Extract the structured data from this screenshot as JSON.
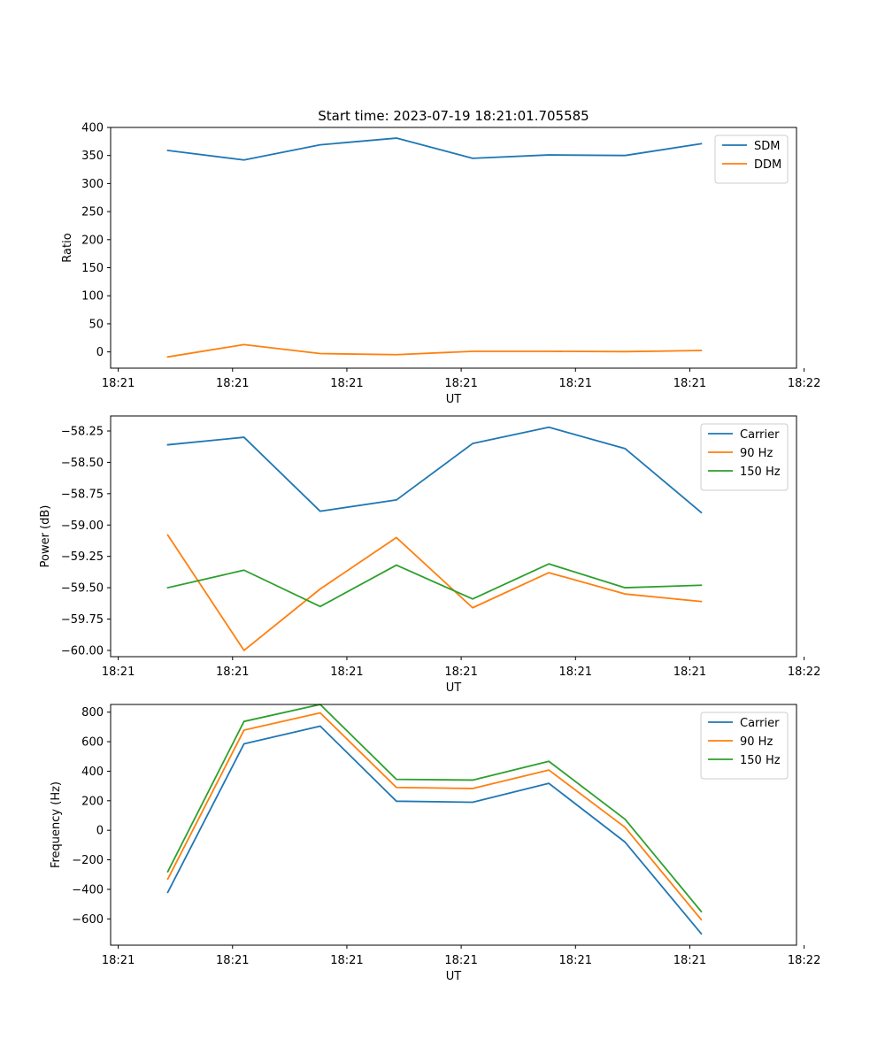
{
  "title": "Start time: 2023-07-19 18:21:01.705585",
  "colors": {
    "blue": "#1f77b4",
    "orange": "#ff7f0e",
    "green": "#2ca02c"
  },
  "chart_data": [
    {
      "type": "line",
      "title": "Start time: 2023-07-19 18:21:01.705585",
      "xlabel": "UT",
      "ylabel": "Ratio",
      "xlim": [
        -0.75,
        8.25
      ],
      "x": [
        0,
        1,
        2,
        3,
        4,
        5,
        6,
        7
      ],
      "xtick_positions": [
        -0.65,
        0.85,
        2.35,
        3.85,
        5.35,
        6.85,
        8.35
      ],
      "xtick_labels": [
        "18:21",
        "18:21",
        "18:21",
        "18:21",
        "18:21",
        "18:21",
        "18:22"
      ],
      "ylim": [
        -29,
        400
      ],
      "yticks": [
        0,
        50,
        100,
        150,
        200,
        250,
        300,
        350,
        400
      ],
      "ytick_labels": [
        "0",
        "50",
        "100",
        "150",
        "200",
        "250",
        "300",
        "350",
        "400"
      ],
      "legend_position": "top-right",
      "grid": false,
      "series": [
        {
          "name": "SDM",
          "color": "#1f77b4",
          "values": [
            359,
            342,
            369,
            381,
            345,
            351,
            350,
            371
          ]
        },
        {
          "name": "DDM",
          "color": "#ff7f0e",
          "values": [
            -9,
            13,
            -3,
            -5,
            1,
            1,
            0.5,
            2.5
          ]
        }
      ]
    },
    {
      "type": "line",
      "xlabel": "UT",
      "ylabel": "Power (dB)",
      "xlim": [
        -0.75,
        8.25
      ],
      "x": [
        0,
        1,
        2,
        3,
        4,
        5,
        6,
        7
      ],
      "xtick_positions": [
        -0.65,
        0.85,
        2.35,
        3.85,
        5.35,
        6.85,
        8.35
      ],
      "xtick_labels": [
        "18:21",
        "18:21",
        "18:21",
        "18:21",
        "18:21",
        "18:21",
        "18:22"
      ],
      "ylim": [
        -60.05,
        -58.13
      ],
      "yticks": [
        -60.0,
        -59.75,
        -59.5,
        -59.25,
        -59.0,
        -58.75,
        -58.5,
        -58.25
      ],
      "ytick_labels": [
        "−60.00",
        "−59.75",
        "−59.50",
        "−59.25",
        "−59.00",
        "−58.75",
        "−58.50",
        "−58.25"
      ],
      "legend_position": "top-right",
      "grid": false,
      "series": [
        {
          "name": "Carrier",
          "color": "#1f77b4",
          "values": [
            -58.36,
            -58.3,
            -58.89,
            -58.8,
            -58.35,
            -58.22,
            -58.39,
            -58.9
          ]
        },
        {
          "name": "90 Hz",
          "color": "#ff7f0e",
          "values": [
            -59.08,
            -60.0,
            -59.51,
            -59.1,
            -59.66,
            -59.38,
            -59.55,
            -59.61
          ]
        },
        {
          "name": "150 Hz",
          "color": "#2ca02c",
          "values": [
            -59.5,
            -59.36,
            -59.65,
            -59.32,
            -59.59,
            -59.31,
            -59.5,
            -59.48
          ]
        }
      ]
    },
    {
      "type": "line",
      "xlabel": "UT",
      "ylabel": "Frequency (Hz)",
      "xlim": [
        -0.75,
        8.25
      ],
      "x": [
        0,
        1,
        2,
        3,
        4,
        5,
        6,
        7
      ],
      "xtick_positions": [
        -0.65,
        0.85,
        2.35,
        3.85,
        5.35,
        6.85,
        8.35
      ],
      "xtick_labels": [
        "18:21",
        "18:21",
        "18:21",
        "18:21",
        "18:21",
        "18:21",
        "18:22"
      ],
      "ylim": [
        -778,
        852
      ],
      "yticks": [
        -600,
        -400,
        -200,
        0,
        200,
        400,
        600,
        800
      ],
      "ytick_labels": [
        "−600",
        "−400",
        "−200",
        "0",
        "200",
        "400",
        "600",
        "800"
      ],
      "legend_position": "top-right",
      "grid": false,
      "series": [
        {
          "name": "Carrier",
          "color": "#1f77b4",
          "values": [
            -420,
            585,
            705,
            197,
            190,
            318,
            -80,
            -700
          ]
        },
        {
          "name": "90 Hz",
          "color": "#ff7f0e",
          "values": [
            -330,
            678,
            795,
            290,
            283,
            408,
            20,
            -605
          ]
        },
        {
          "name": "150 Hz",
          "color": "#2ca02c",
          "values": [
            -280,
            737,
            852,
            345,
            340,
            467,
            75,
            -550
          ]
        }
      ]
    }
  ]
}
